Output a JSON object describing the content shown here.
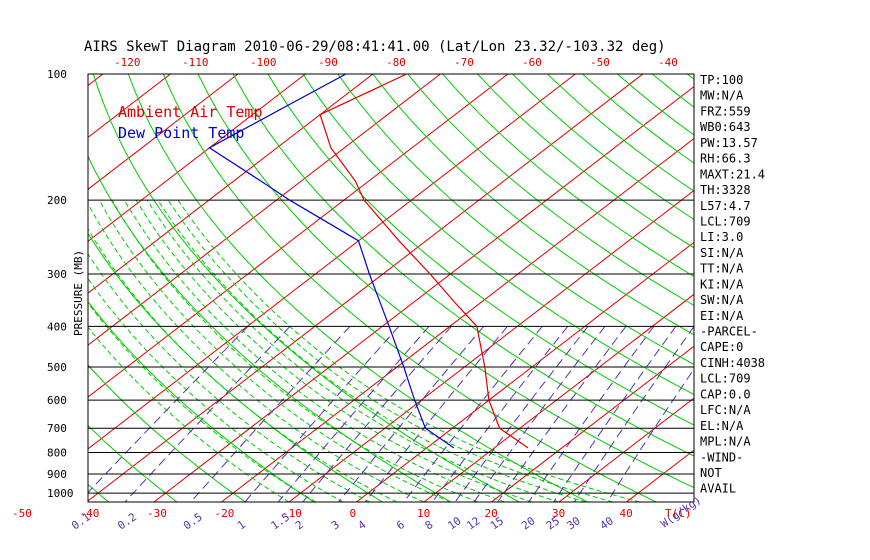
{
  "chart_data": {
    "type": "line",
    "title": "AIRS SkewT Diagram 2010-06-29/08:41:41.00 (Lat/Lon 23.32/-103.32 deg)",
    "ylabel": "PRESSURE (MB)",
    "xlabel": "T(C)",
    "mixing_ratio_label": "W(g/kg)",
    "y_scale": "log",
    "ylim": [
      1050,
      100
    ],
    "grid": true,
    "legend_position": "top-left",
    "pressure_ticks": [
      100,
      200,
      300,
      400,
      500,
      600,
      700,
      800,
      900,
      1000
    ],
    "isobars": [
      200,
      300,
      400,
      500,
      600,
      700,
      800,
      900,
      1000
    ],
    "bottom_temp_ticks": [
      -50,
      -40,
      -30,
      -20,
      -10,
      0,
      10,
      20,
      30,
      40
    ],
    "top_temp_ticks": [
      -120,
      -110,
      -100,
      -90,
      -80,
      -70,
      -60,
      -50,
      -40
    ],
    "mixing_ratio_ticks": [
      "0.1",
      "0.2",
      "0.5",
      "1",
      "1.5",
      "2",
      "3",
      "4",
      "6",
      "8",
      "10",
      "12",
      "15",
      "20",
      "25",
      "30",
      "40"
    ],
    "series": [
      {
        "name": "Ambient Air Temp",
        "color": "#dd0000",
        "points": [
          {
            "p": 100,
            "t": -75
          },
          {
            "p": 125,
            "t": -80
          },
          {
            "p": 150,
            "t": -72
          },
          {
            "p": 180,
            "t": -62
          },
          {
            "p": 200,
            "t": -57
          },
          {
            "p": 250,
            "t": -44
          },
          {
            "p": 300,
            "t": -33
          },
          {
            "p": 350,
            "t": -24
          },
          {
            "p": 400,
            "t": -16
          },
          {
            "p": 500,
            "t": -7
          },
          {
            "p": 600,
            "t": 0
          },
          {
            "p": 700,
            "t": 7
          },
          {
            "p": 780,
            "t": 15
          }
        ]
      },
      {
        "name": "Dew Point Temp",
        "color": "#0000cc",
        "points": [
          {
            "p": 100,
            "t": -84
          },
          {
            "p": 150,
            "t": -90
          },
          {
            "p": 180,
            "t": -76
          },
          {
            "p": 200,
            "t": -68
          },
          {
            "p": 250,
            "t": -50
          },
          {
            "p": 300,
            "t": -42
          },
          {
            "p": 400,
            "t": -29
          },
          {
            "p": 500,
            "t": -19
          },
          {
            "p": 600,
            "t": -11
          },
          {
            "p": 700,
            "t": -4
          },
          {
            "p": 780,
            "t": 4
          }
        ]
      }
    ]
  },
  "indices": [
    "TP:100",
    "MW:N/A",
    "FRZ:559",
    "WB0:643",
    "PW:13.57",
    "RH:66.3",
    "MAXT:21.4",
    "TH:3328",
    "L57:4.7",
    "LCL:709",
    "LI:3.0",
    "SI:N/A",
    "TT:N/A",
    "KI:N/A",
    "SW:N/A",
    "EI:N/A",
    "-PARCEL-",
    "CAPE:0",
    "CINH:4038",
    "LCL:709",
    "CAP:0.0",
    "LFC:N/A",
    "EL:N/A",
    "MPL:N/A",
    "-WIND-",
    "NOT",
    "AVAIL"
  ],
  "colors": {
    "isotherm": "#dd0000",
    "dry_adiabat": "#00cc00",
    "moist_adiabat": "#00cc00",
    "mixing_ratio": "#5533aa",
    "axis_red": "#dd0000",
    "temperature": "#dd0000",
    "dewpoint": "#0000cc"
  }
}
